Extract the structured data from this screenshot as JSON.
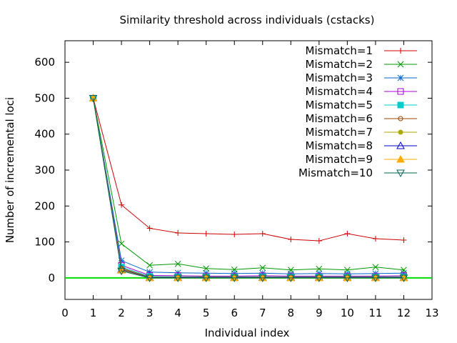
{
  "chart_data": {
    "type": "line",
    "title": "Similarity threshold across individuals (cstacks)",
    "xlabel": "Individual index",
    "ylabel": "Number of incremental loci",
    "xlim": [
      0,
      13
    ],
    "ylim": [
      -60,
      660
    ],
    "xticks": [
      0,
      1,
      2,
      3,
      4,
      5,
      6,
      7,
      8,
      9,
      10,
      11,
      12,
      13
    ],
    "yticks": [
      0,
      100,
      200,
      300,
      400,
      500,
      600
    ],
    "legend_position": "top-right",
    "zero_line_color": "#00dd00",
    "x": [
      1,
      2,
      3,
      4,
      5,
      6,
      7,
      8,
      9,
      10,
      11,
      12
    ],
    "series": [
      {
        "name": "Mismatch=1",
        "color": "#cc0000",
        "marker": "plus",
        "values": [
          500,
          203,
          138,
          125,
          123,
          121,
          123,
          107,
          103,
          123,
          109,
          105
        ]
      },
      {
        "name": "Mismatch=2",
        "color": "#009900",
        "marker": "cross",
        "values": [
          500,
          95,
          35,
          39,
          26,
          23,
          28,
          22,
          25,
          22,
          30,
          22
        ]
      },
      {
        "name": "Mismatch=3",
        "color": "#0066cc",
        "marker": "star",
        "values": [
          500,
          48,
          16,
          14,
          13,
          12,
          13,
          11,
          12,
          11,
          12,
          13
        ]
      },
      {
        "name": "Mismatch=4",
        "color": "#aa00cc",
        "marker": "square",
        "values": [
          500,
          35,
          7,
          6,
          5,
          5,
          6,
          5,
          5,
          5,
          5,
          6
        ]
      },
      {
        "name": "Mismatch=5",
        "color": "#00cccc",
        "marker": "filled-square",
        "values": [
          500,
          30,
          4,
          3,
          3,
          3,
          3,
          3,
          3,
          3,
          3,
          3
        ]
      },
      {
        "name": "Mismatch=6",
        "color": "#994400",
        "marker": "circle",
        "values": [
          500,
          27,
          2,
          2,
          2,
          2,
          2,
          2,
          2,
          2,
          2,
          2
        ]
      },
      {
        "name": "Mismatch=7",
        "color": "#aaaa00",
        "marker": "filled-circle",
        "values": [
          500,
          25,
          1,
          1,
          1,
          1,
          1,
          1,
          1,
          1,
          1,
          1
        ]
      },
      {
        "name": "Mismatch=8",
        "color": "#0000cc",
        "marker": "triangle",
        "values": [
          500,
          23,
          1,
          1,
          1,
          1,
          1,
          1,
          1,
          1,
          1,
          1
        ]
      },
      {
        "name": "Mismatch=9",
        "color": "#ffaa00",
        "marker": "filled-triangle",
        "values": [
          500,
          21,
          0,
          0,
          0,
          0,
          0,
          0,
          0,
          0,
          0,
          0
        ]
      },
      {
        "name": "Mismatch=10",
        "color": "#006655",
        "marker": "inverted-triangle",
        "values": [
          500,
          19,
          0,
          0,
          0,
          0,
          0,
          0,
          0,
          0,
          0,
          0
        ]
      }
    ]
  }
}
